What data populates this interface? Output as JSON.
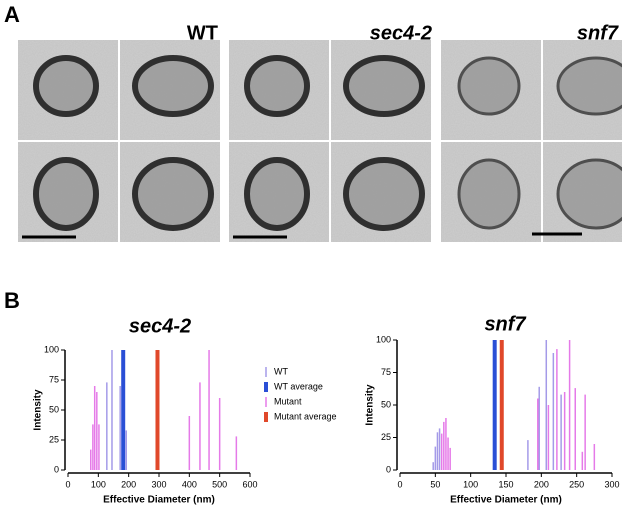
{
  "panel_labels": [
    "A",
    "B"
  ],
  "micrograph_labels": [
    "WT",
    "sec4-2",
    "snf7"
  ],
  "chart_data": [
    {
      "type": "bar",
      "title": "sec4-2",
      "x_label": "Effective Diameter (nm)",
      "y_label": "Intensity",
      "xlim": [
        0,
        600
      ],
      "xticks": [
        0,
        100,
        200,
        300,
        400,
        500,
        600
      ],
      "ylim": [
        0,
        100
      ],
      "yticks": [
        0,
        25,
        50,
        75,
        100
      ],
      "legend": "right",
      "series": [
        {
          "name": "WT",
          "color": "#a49ae8",
          "x": [
            128,
            145,
            172,
            192
          ],
          "values": [
            73,
            100,
            70,
            33
          ]
        },
        {
          "name": "WT average",
          "color": "#2a4fd6",
          "x": [
            182
          ],
          "values": [
            100
          ]
        },
        {
          "name": "Mutant",
          "color": "#e57ae8",
          "x": [
            75,
            82,
            88,
            95,
            102,
            400,
            435,
            465,
            500,
            555
          ],
          "values": [
            17,
            38,
            70,
            65,
            38,
            45,
            73,
            100,
            60,
            28
          ]
        },
        {
          "name": "Mutant average",
          "color": "#e0482a",
          "x": [
            295
          ],
          "values": [
            100
          ]
        }
      ]
    },
    {
      "type": "bar",
      "title": "snf7",
      "x_label": "Effective Diameter (nm)",
      "y_label": "Intensity",
      "xlim": [
        0,
        300
      ],
      "xticks": [
        0,
        50,
        100,
        150,
        200,
        250,
        300
      ],
      "ylim": [
        0,
        100
      ],
      "yticks": [
        0,
        25,
        50,
        75,
        100
      ],
      "series": [
        {
          "color": "#a49ae8",
          "x": [
            47,
            50,
            53,
            56,
            181,
            197,
            207,
            217,
            228
          ],
          "values": [
            6,
            18,
            29,
            32,
            23,
            64,
            100,
            90,
            58
          ]
        },
        {
          "color": "#2a4fd6",
          "x": [
            134
          ],
          "values": [
            100
          ]
        },
        {
          "color": "#e57ae8",
          "x": [
            59,
            62,
            65,
            68,
            71,
            195,
            210,
            222,
            233,
            240,
            248,
            258,
            262,
            275
          ],
          "values": [
            28,
            37,
            40,
            25,
            17,
            55,
            50,
            93,
            60,
            100,
            63,
            14,
            58,
            20
          ]
        },
        {
          "color": "#e0482a",
          "x": [
            144
          ],
          "values": [
            100
          ]
        }
      ]
    }
  ]
}
